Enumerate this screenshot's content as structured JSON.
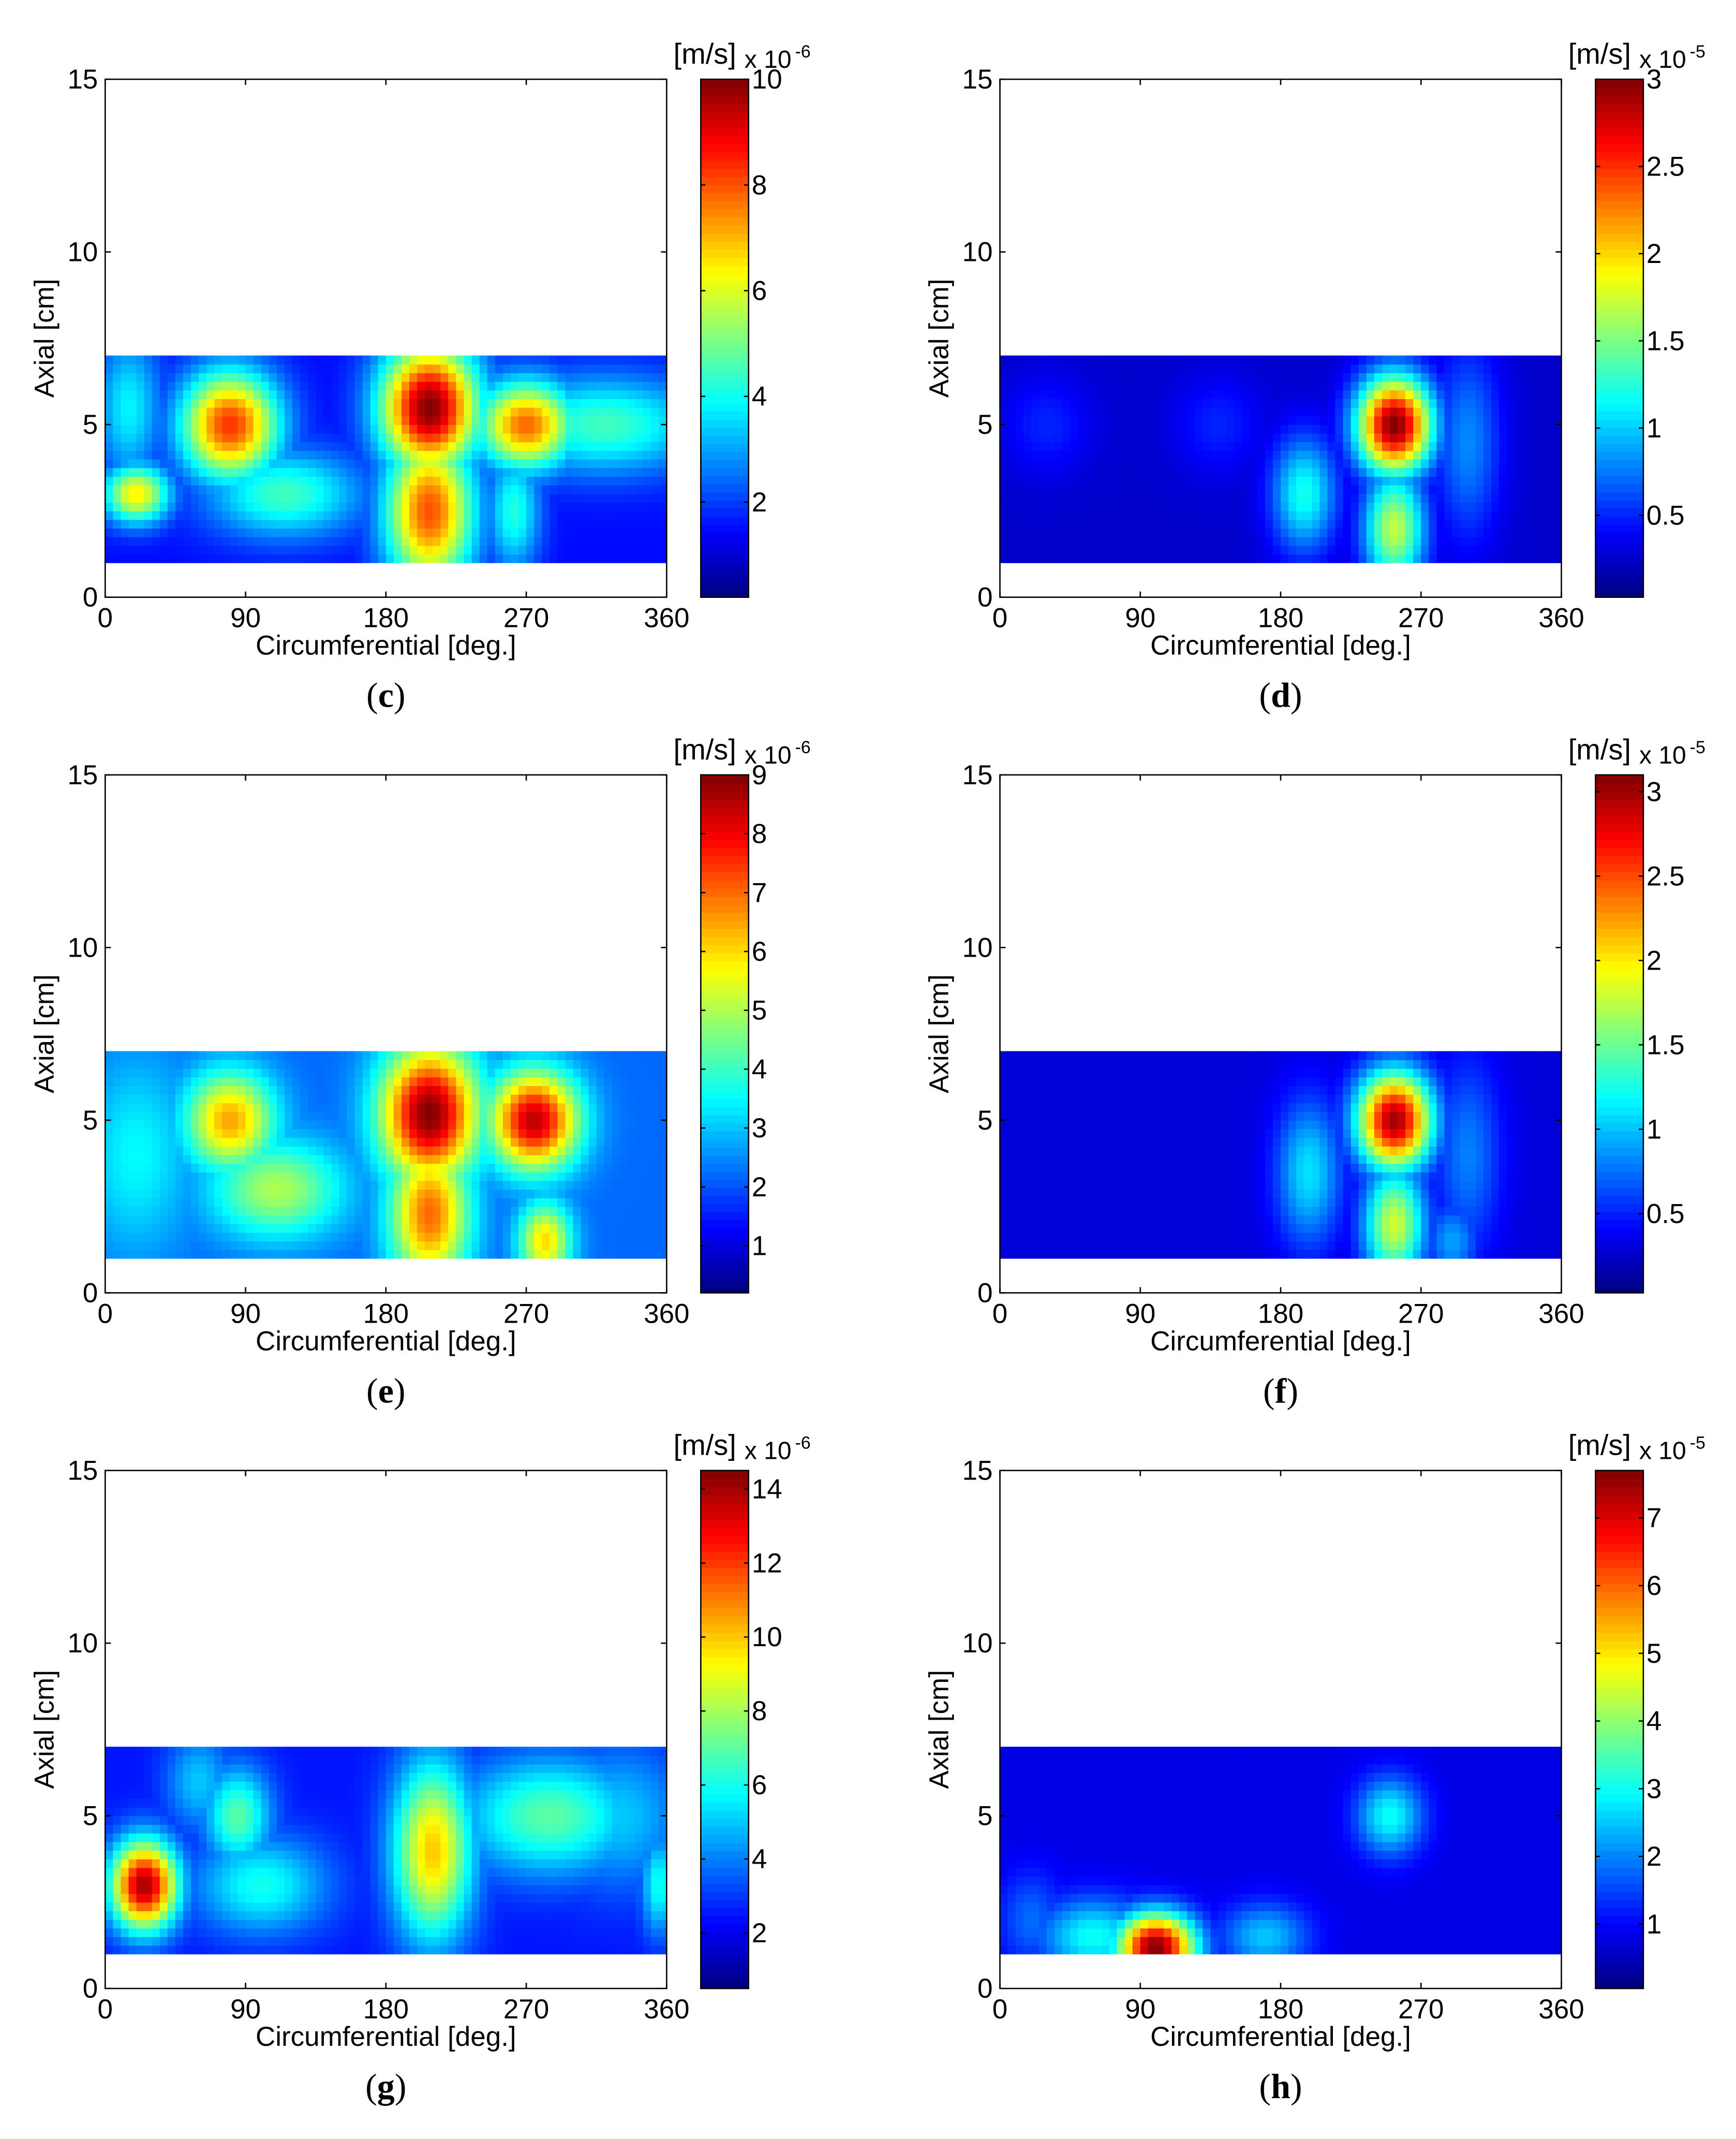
{
  "chart_data": [
    {
      "type": "heatmap",
      "panel": "(c)",
      "panel_letter": "c",
      "xlabel": "Circumferential [deg.]",
      "ylabel": "Axial [cm]",
      "xlim": [
        0,
        360
      ],
      "ylim": [
        0,
        15
      ],
      "xticks": [
        "0",
        "90",
        "180",
        "270",
        "360"
      ],
      "yticks": [
        "0",
        "5",
        "10",
        "15"
      ],
      "data_extent_y": [
        1,
        7
      ],
      "colorbar": {
        "unit": "[m/s]",
        "multiplier": "x 10",
        "exponent": "-6",
        "range": [
          0.2,
          10
        ],
        "ticks": [
          "2",
          "4",
          "6",
          "8",
          "10"
        ]
      },
      "background_value": 1.5,
      "hotspots": [
        {
          "x": 80,
          "y": 5,
          "peak": 8.3,
          "sx": 22,
          "sy": 1.1
        },
        {
          "x": 20,
          "y": 3,
          "peak": 6.5,
          "sx": 15,
          "sy": 0.6
        },
        {
          "x": 115,
          "y": 3,
          "peak": 4.5,
          "sx": 35,
          "sy": 0.9
        },
        {
          "x": 208,
          "y": 5.5,
          "peak": 10,
          "sx": 22,
          "sy": 1.3
        },
        {
          "x": 208,
          "y": 2.5,
          "peak": 8.0,
          "sx": 20,
          "sy": 1.6
        },
        {
          "x": 270,
          "y": 5,
          "peak": 7.8,
          "sx": 22,
          "sy": 0.9
        },
        {
          "x": 320,
          "y": 5,
          "peak": 4.5,
          "sx": 45,
          "sy": 1.0
        },
        {
          "x": 262,
          "y": 2.5,
          "peak": 4.2,
          "sx": 12,
          "sy": 1.2
        },
        {
          "x": 15,
          "y": 5.5,
          "peak": 3.8,
          "sx": 15,
          "sy": 1.5
        }
      ]
    },
    {
      "type": "heatmap",
      "panel": "(d)",
      "panel_letter": "d",
      "xlabel": "Circumferential [deg.]",
      "ylabel": "Axial [cm]",
      "xlim": [
        0,
        360
      ],
      "ylim": [
        0,
        15
      ],
      "xticks": [
        "0",
        "90",
        "180",
        "270",
        "360"
      ],
      "yticks": [
        "0",
        "5",
        "10",
        "15"
      ],
      "data_extent_y": [
        1,
        7
      ],
      "colorbar": {
        "unit": "[m/s]",
        "multiplier": "x 10",
        "exponent": "-5",
        "range": [
          0.03,
          3
        ],
        "ticks": [
          "0.5",
          "1",
          "1.5",
          "2",
          "2.5",
          "3"
        ]
      },
      "background_value": 0.25,
      "hotspots": [
        {
          "x": 253,
          "y": 5,
          "peak": 3.0,
          "sx": 17,
          "sy": 1.0
        },
        {
          "x": 253,
          "y": 2,
          "peak": 1.7,
          "sx": 14,
          "sy": 1.2
        },
        {
          "x": 195,
          "y": 3,
          "peak": 1.2,
          "sx": 15,
          "sy": 1.2
        },
        {
          "x": 300,
          "y": 4.5,
          "peak": 0.8,
          "sx": 15,
          "sy": 2.0
        },
        {
          "x": 30,
          "y": 5,
          "peak": 0.5,
          "sx": 20,
          "sy": 1.0
        },
        {
          "x": 140,
          "y": 5,
          "peak": 0.5,
          "sx": 20,
          "sy": 1.0
        }
      ]
    },
    {
      "type": "heatmap",
      "panel": "(e)",
      "panel_letter": "e",
      "xlabel": "Circumferential [deg.]",
      "ylabel": "Axial [cm]",
      "xlim": [
        0,
        360
      ],
      "ylim": [
        0,
        15
      ],
      "xticks": [
        "0",
        "90",
        "180",
        "270",
        "360"
      ],
      "yticks": [
        "0",
        "5",
        "10",
        "15"
      ],
      "data_extent_y": [
        1,
        7
      ],
      "colorbar": {
        "unit": "[m/s]",
        "multiplier": "x 10",
        "exponent": "-6",
        "range": [
          0.2,
          9
        ],
        "ticks": [
          "1",
          "2",
          "3",
          "4",
          "5",
          "6",
          "7",
          "8",
          "9"
        ]
      },
      "background_value": 2.2,
      "hotspots": [
        {
          "x": 80,
          "y": 5,
          "peak": 6.5,
          "sx": 20,
          "sy": 1.0
        },
        {
          "x": 110,
          "y": 3,
          "peak": 5.0,
          "sx": 30,
          "sy": 1.0
        },
        {
          "x": 208,
          "y": 5.2,
          "peak": 9.0,
          "sx": 22,
          "sy": 1.4
        },
        {
          "x": 208,
          "y": 2.3,
          "peak": 7.0,
          "sx": 18,
          "sy": 1.5
        },
        {
          "x": 275,
          "y": 5,
          "peak": 8.5,
          "sx": 20,
          "sy": 1.0
        },
        {
          "x": 282,
          "y": 1.5,
          "peak": 6.0,
          "sx": 12,
          "sy": 0.8
        },
        {
          "x": 20,
          "y": 4,
          "peak": 3.5,
          "sx": 25,
          "sy": 2.0
        }
      ]
    },
    {
      "type": "heatmap",
      "panel": "(f)",
      "panel_letter": "f",
      "xlabel": "Circumferential [deg.]",
      "ylabel": "Axial [cm]",
      "xlim": [
        0,
        360
      ],
      "ylim": [
        0,
        15
      ],
      "xticks": [
        "0",
        "90",
        "180",
        "270",
        "360"
      ],
      "yticks": [
        "0",
        "5",
        "10",
        "15"
      ],
      "data_extent_y": [
        1,
        7
      ],
      "colorbar": {
        "unit": "[m/s]",
        "multiplier": "x 10",
        "exponent": "-5",
        "range": [
          0.03,
          3.1
        ],
        "ticks": [
          "0.5",
          "1",
          "1.5",
          "2",
          "2.5",
          "3"
        ]
      },
      "background_value": 0.3,
      "hotspots": [
        {
          "x": 253,
          "y": 5,
          "peak": 3.0,
          "sx": 17,
          "sy": 1.0
        },
        {
          "x": 253,
          "y": 2,
          "peak": 1.8,
          "sx": 14,
          "sy": 1.2
        },
        {
          "x": 198,
          "y": 3.5,
          "peak": 1.1,
          "sx": 15,
          "sy": 1.5
        },
        {
          "x": 300,
          "y": 4,
          "peak": 0.8,
          "sx": 15,
          "sy": 2.0
        },
        {
          "x": 290,
          "y": 1.5,
          "peak": 0.9,
          "sx": 12,
          "sy": 0.8
        }
      ]
    },
    {
      "type": "heatmap",
      "panel": "(g)",
      "panel_letter": "g",
      "xlabel": "Circumferential [deg.]",
      "ylabel": "Axial [cm]",
      "xlim": [
        0,
        360
      ],
      "ylim": [
        0,
        15
      ],
      "xticks": [
        "0",
        "90",
        "180",
        "270",
        "360"
      ],
      "yticks": [
        "0",
        "5",
        "10",
        "15"
      ],
      "data_extent_y": [
        1,
        7
      ],
      "colorbar": {
        "unit": "[m/s]",
        "multiplier": "x 10",
        "exponent": "-6",
        "range": [
          0.5,
          14.5
        ],
        "ticks": [
          "2",
          "4",
          "6",
          "8",
          "10",
          "12",
          "14"
        ]
      },
      "background_value": 2.5,
      "hotspots": [
        {
          "x": 25,
          "y": 3,
          "peak": 14,
          "sx": 15,
          "sy": 0.9
        },
        {
          "x": 85,
          "y": 5,
          "peak": 7,
          "sx": 15,
          "sy": 1.0
        },
        {
          "x": 100,
          "y": 3,
          "peak": 6,
          "sx": 30,
          "sy": 1.0
        },
        {
          "x": 210,
          "y": 4,
          "peak": 10,
          "sx": 18,
          "sy": 1.8
        },
        {
          "x": 285,
          "y": 5,
          "peak": 7,
          "sx": 40,
          "sy": 1.2
        },
        {
          "x": 330,
          "y": 5,
          "peak": 5,
          "sx": 30,
          "sy": 1.5
        },
        {
          "x": 355,
          "y": 3,
          "peak": 6,
          "sx": 8,
          "sy": 1.0
        },
        {
          "x": 60,
          "y": 6,
          "peak": 5,
          "sx": 15,
          "sy": 1.0
        }
      ]
    },
    {
      "type": "heatmap",
      "panel": "(h)",
      "panel_letter": "h",
      "xlabel": "Circumferential [deg.]",
      "ylabel": "Axial [cm]",
      "xlim": [
        0,
        360
      ],
      "ylim": [
        0,
        15
      ],
      "xticks": [
        "0",
        "90",
        "180",
        "270",
        "360"
      ],
      "yticks": [
        "0",
        "5",
        "10",
        "15"
      ],
      "data_extent_y": [
        1,
        7
      ],
      "colorbar": {
        "unit": "[m/s]",
        "multiplier": "x 10",
        "exponent": "-5",
        "range": [
          0.05,
          7.7
        ],
        "ticks": [
          "1",
          "2",
          "3",
          "4",
          "5",
          "6",
          "7"
        ]
      },
      "background_value": 0.8,
      "hotspots": [
        {
          "x": 100,
          "y": 1.2,
          "peak": 7.7,
          "sx": 18,
          "sy": 0.7
        },
        {
          "x": 60,
          "y": 1.5,
          "peak": 3.0,
          "sx": 25,
          "sy": 0.8
        },
        {
          "x": 250,
          "y": 5,
          "peak": 3.0,
          "sx": 15,
          "sy": 0.8
        },
        {
          "x": 170,
          "y": 1.5,
          "peak": 2.5,
          "sx": 20,
          "sy": 0.7
        },
        {
          "x": 20,
          "y": 2,
          "peak": 1.8,
          "sx": 15,
          "sy": 1.0
        }
      ]
    }
  ]
}
